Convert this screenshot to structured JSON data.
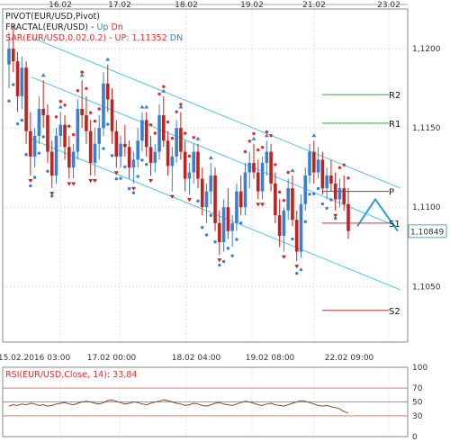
{
  "chart_data": {
    "type": "candlestick",
    "instrument": "EUR/USD",
    "legend": [
      {
        "text": "PIVOT(EUR/USD,Pivot)",
        "color": "#222222"
      },
      {
        "text": "FRACTAL(EUR/USD) - ",
        "color": "#222222",
        "up": "Up",
        "up_color": "#3a7fd5",
        "dn": "Dn",
        "dn_color": "#d9302a"
      },
      {
        "text": "SAR(EUR/USD,0.02,0.2) - UP: 1,11352",
        "color": "#d9302a",
        "extra": "DN",
        "extra_color": "#3a7fd5"
      }
    ],
    "top_dates": [
      "16.02",
      "17.02",
      "18.02",
      "19.02",
      "21.02",
      "23.02"
    ],
    "bottom_dates": [
      "15.02.2016 03:00",
      "17.02 00:00",
      "18.02 04:00",
      "19.02 08:00",
      "22.02 09:00"
    ],
    "y_ticks": [
      "1,1200",
      "1,1150",
      "1,1100",
      "1,1050"
    ],
    "ylim": [
      1.1015,
      1.1225
    ],
    "last_price": "1,10849",
    "last_price_value": 1.10849,
    "pivots": [
      {
        "name": "R2",
        "value": 1.1171
      },
      {
        "name": "R1",
        "value": 1.1153
      },
      {
        "name": "P",
        "value": 1.111
      },
      {
        "name": "S1",
        "value": 1.109
      },
      {
        "name": "S2",
        "value": 1.1035
      }
    ],
    "channel_upper": [
      [
        1.1207,
        1.111
      ]
    ],
    "candles_ohlc": [
      [
        1.119,
        1.121,
        1.1175,
        1.12
      ],
      [
        1.12,
        1.1215,
        1.1185,
        1.1192
      ],
      [
        1.1192,
        1.1198,
        1.116,
        1.117
      ],
      [
        1.117,
        1.1195,
        1.1162,
        1.1188
      ],
      [
        1.1188,
        1.1192,
        1.114,
        1.1148
      ],
      [
        1.1148,
        1.116,
        1.112,
        1.1132
      ],
      [
        1.1132,
        1.115,
        1.1125,
        1.1145
      ],
      [
        1.1145,
        1.117,
        1.114,
        1.1162
      ],
      [
        1.1162,
        1.118,
        1.115,
        1.1158
      ],
      [
        1.1158,
        1.1165,
        1.1128,
        1.1135
      ],
      [
        1.1135,
        1.1142,
        1.1112,
        1.112
      ],
      [
        1.112,
        1.115,
        1.1115,
        1.1145
      ],
      [
        1.1145,
        1.116,
        1.1138,
        1.1152
      ],
      [
        1.1152,
        1.1158,
        1.113,
        1.1138
      ],
      [
        1.1138,
        1.1145,
        1.1118,
        1.1125
      ],
      [
        1.1125,
        1.114,
        1.1118,
        1.1135
      ],
      [
        1.1135,
        1.1168,
        1.113,
        1.1162
      ],
      [
        1.1162,
        1.118,
        1.115,
        1.1158
      ],
      [
        1.1158,
        1.117,
        1.114,
        1.1148
      ],
      [
        1.1148,
        1.1155,
        1.112,
        1.1128
      ],
      [
        1.1128,
        1.115,
        1.112,
        1.114
      ],
      [
        1.114,
        1.1158,
        1.113,
        1.115
      ],
      [
        1.115,
        1.1185,
        1.1145,
        1.1178
      ],
      [
        1.1178,
        1.119,
        1.116,
        1.1168
      ],
      [
        1.1168,
        1.1175,
        1.114,
        1.1148
      ],
      [
        1.1148,
        1.1155,
        1.1125,
        1.1132
      ],
      [
        1.1132,
        1.1145,
        1.1125,
        1.114
      ],
      [
        1.114,
        1.1152,
        1.1132,
        1.1138
      ],
      [
        1.1138,
        1.1142,
        1.1118,
        1.1125
      ],
      [
        1.1125,
        1.1135,
        1.1115,
        1.113
      ],
      [
        1.113,
        1.115,
        1.1125,
        1.1142
      ],
      [
        1.1142,
        1.116,
        1.1135,
        1.1155
      ],
      [
        1.1155,
        1.116,
        1.1132,
        1.1138
      ],
      [
        1.1138,
        1.1145,
        1.112,
        1.1128
      ],
      [
        1.1128,
        1.114,
        1.1122,
        1.1135
      ],
      [
        1.1135,
        1.1165,
        1.113,
        1.1158
      ],
      [
        1.1158,
        1.117,
        1.1138,
        1.1142
      ],
      [
        1.1142,
        1.1148,
        1.112,
        1.1126
      ],
      [
        1.1126,
        1.1138,
        1.111,
        1.1132
      ],
      [
        1.1132,
        1.1155,
        1.1128,
        1.115
      ],
      [
        1.115,
        1.116,
        1.113,
        1.1135
      ],
      [
        1.1135,
        1.1142,
        1.111,
        1.1118
      ],
      [
        1.1118,
        1.1128,
        1.1108,
        1.1122
      ],
      [
        1.1122,
        1.114,
        1.1115,
        1.1135
      ],
      [
        1.1135,
        1.114,
        1.1112,
        1.1118
      ],
      [
        1.1118,
        1.1125,
        1.1095,
        1.11
      ],
      [
        1.11,
        1.1115,
        1.109,
        1.111
      ],
      [
        1.111,
        1.1128,
        1.1102,
        1.112
      ],
      [
        1.112,
        1.1125,
        1.1085,
        1.109
      ],
      [
        1.109,
        1.1098,
        1.107,
        1.1078
      ],
      [
        1.1078,
        1.1105,
        1.1072,
        1.11
      ],
      [
        1.11,
        1.1112,
        1.108,
        1.1085
      ],
      [
        1.1085,
        1.1095,
        1.1075,
        1.109
      ],
      [
        1.109,
        1.1115,
        1.1085,
        1.111
      ],
      [
        1.111,
        1.112,
        1.1095,
        1.11
      ],
      [
        1.11,
        1.1128,
        1.1095,
        1.1122
      ],
      [
        1.1122,
        1.1135,
        1.1112,
        1.1128
      ],
      [
        1.1128,
        1.114,
        1.1118,
        1.1122
      ],
      [
        1.1122,
        1.113,
        1.1105,
        1.111
      ],
      [
        1.111,
        1.1132,
        1.1105,
        1.1128
      ],
      [
        1.1128,
        1.1142,
        1.112,
        1.1135
      ],
      [
        1.1135,
        1.114,
        1.111,
        1.1115
      ],
      [
        1.1115,
        1.1122,
        1.109,
        1.1095
      ],
      [
        1.1095,
        1.1105,
        1.1075,
        1.1082
      ],
      [
        1.1082,
        1.11,
        1.1072,
        1.1098
      ],
      [
        1.1098,
        1.1118,
        1.1092,
        1.1112
      ],
      [
        1.1112,
        1.112,
        1.1088,
        1.1092
      ],
      [
        1.1092,
        1.1098,
        1.1066,
        1.1072
      ],
      [
        1.1072,
        1.1108,
        1.1068,
        1.1102
      ],
      [
        1.1102,
        1.1125,
        1.1098,
        1.112
      ],
      [
        1.112,
        1.114,
        1.1115,
        1.1135
      ],
      [
        1.1135,
        1.1142,
        1.1115,
        1.1122
      ],
      [
        1.1122,
        1.1138,
        1.1118,
        1.113
      ],
      [
        1.113,
        1.1135,
        1.1108,
        1.1112
      ],
      [
        1.1112,
        1.1125,
        1.1105,
        1.112
      ],
      [
        1.112,
        1.113,
        1.111,
        1.1115
      ],
      [
        1.1115,
        1.1122,
        1.1098,
        1.1105
      ],
      [
        1.1105,
        1.1118,
        1.11,
        1.1112
      ],
      [
        1.1112,
        1.112,
        1.1098,
        1.1102
      ],
      [
        1.1102,
        1.1112,
        1.108,
        1.1085
      ]
    ],
    "sar_points_up_phase": [
      1.112,
      1.1128,
      1.1136,
      1.1145,
      1.1152
    ],
    "rsi": {
      "label": "RSI(EUR/USD,Close, 14): 33,84",
      "label_color": "#d9302a",
      "ylim": [
        0,
        100
      ],
      "ticks": [
        "100",
        "70",
        "50",
        "30",
        "0"
      ],
      "levels": [
        70,
        50,
        30
      ],
      "values": [
        44,
        46,
        45,
        47,
        46,
        48,
        47,
        45,
        46,
        44,
        45,
        47,
        48,
        49,
        47,
        46,
        48,
        50,
        51,
        50,
        48,
        47,
        49,
        52,
        53,
        51,
        49,
        47,
        48,
        50,
        49,
        47,
        46,
        48,
        50,
        51,
        53,
        52,
        50,
        48,
        47,
        45,
        46,
        48,
        47,
        45,
        44,
        46,
        48,
        49,
        47,
        46,
        45,
        47,
        49,
        51,
        50,
        48,
        46,
        45,
        47,
        48,
        46,
        45,
        44,
        46,
        48,
        50,
        52,
        51,
        49,
        47,
        45,
        44,
        45,
        43,
        42,
        40,
        36,
        34
      ]
    },
    "colors": {
      "bull": "#3a7fd5",
      "bear": "#c0231d",
      "channel": "#4fc3e6",
      "sar": "#d9302a",
      "sar_dn": "#3a7fd5",
      "pivot_r": "#33aa33",
      "pivot_s": "#d9302a",
      "pivot_p": "#555555",
      "arrow": "#2a9fd6",
      "last_price_bg": "#ffffff"
    }
  }
}
